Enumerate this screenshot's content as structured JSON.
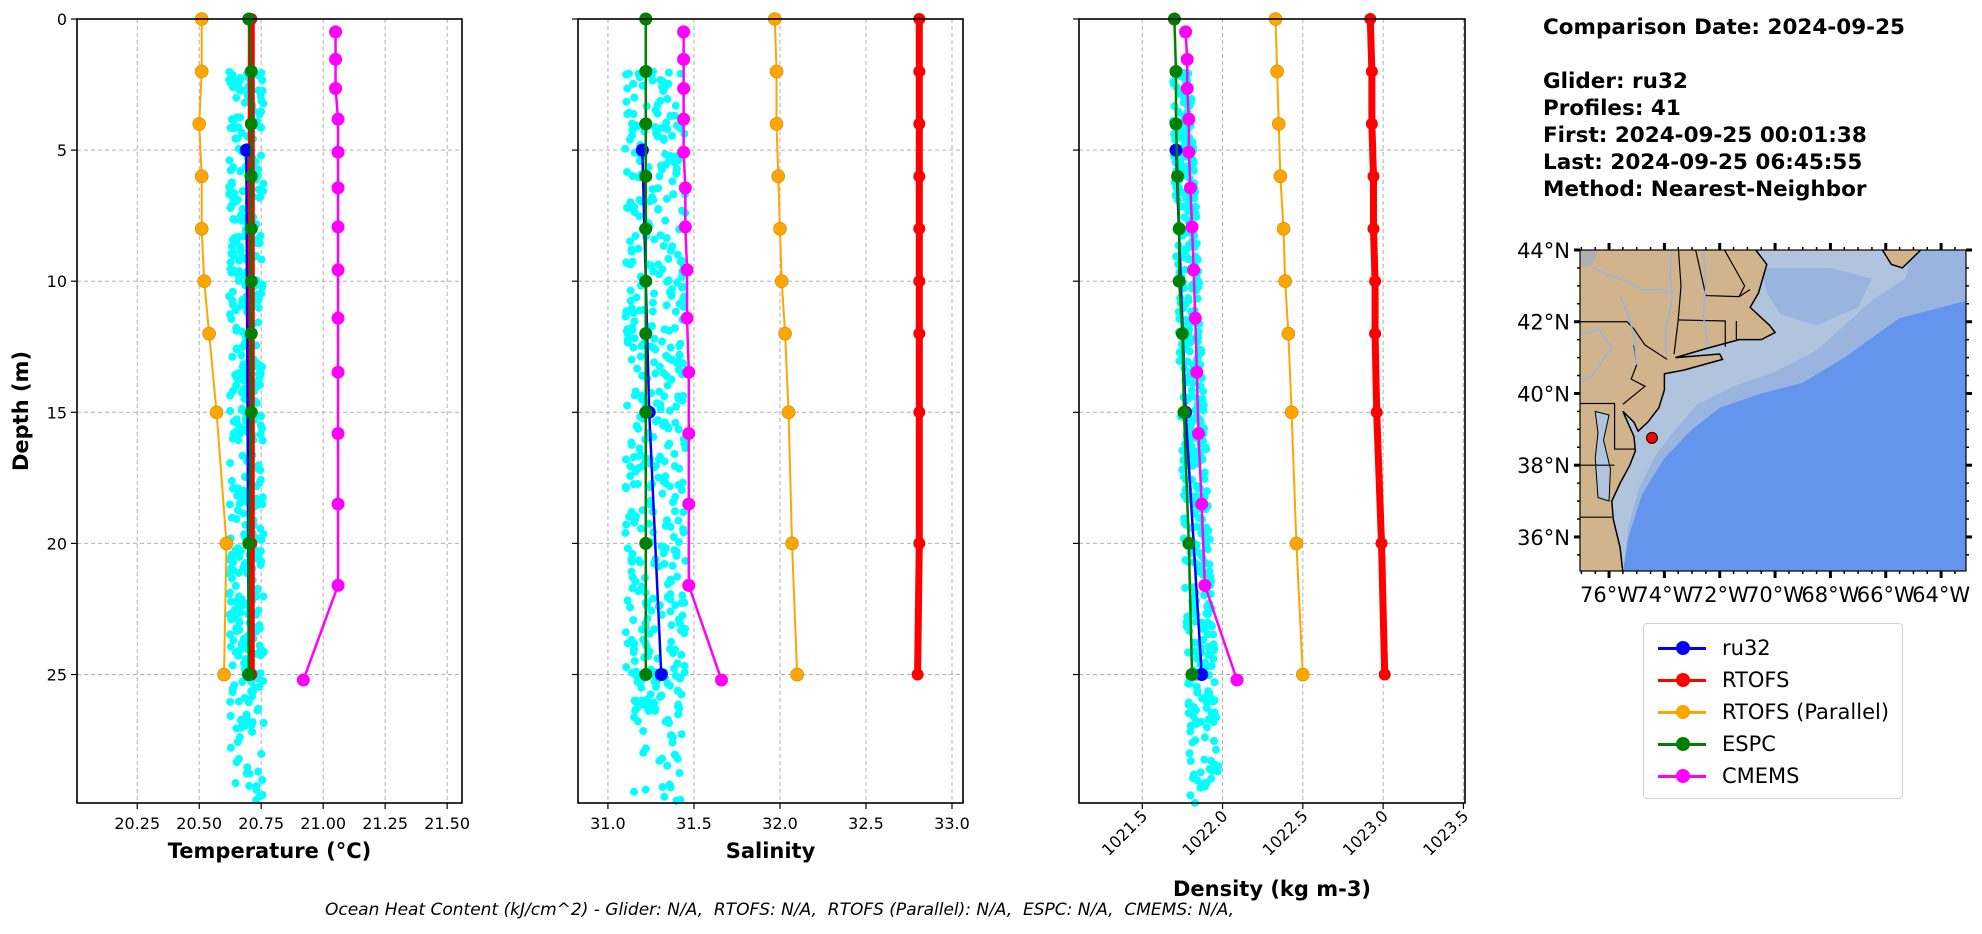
{
  "info": {
    "comparison_date": "Comparison Date: 2024-09-25",
    "glider": "Glider: ru32",
    "profiles": "Profiles: 41",
    "first": "First: 2024-09-25 00:01:38",
    "last": "Last: 2024-09-25 06:45:55",
    "method": "Method: Nearest-Neighbor"
  },
  "footer": "Ocean Heat Content (kJ/cm^2) - Glider: N/A,  RTOFS: N/A,  RTOFS (Parallel): N/A,  ESPC: N/A,  CMEMS: N/A,",
  "colors": {
    "ru32": "#0000ff",
    "RTOFS": "#ff0000",
    "RTOFS (Parallel)": "#ffa500",
    "ESPC": "#008000",
    "CMEMS": "#ff00ff",
    "glider_scatter": "#00ffff",
    "land": "#d2b48c",
    "shelf": "#b0c4de",
    "slope": "#9ab4e0",
    "deep": "#6495ed"
  },
  "legend": [
    {
      "label": "ru32",
      "key": "ru32"
    },
    {
      "label": "RTOFS",
      "key": "RTOFS"
    },
    {
      "label": "RTOFS (Parallel)",
      "key": "RTOFS (Parallel)"
    },
    {
      "label": "ESPC",
      "key": "ESPC"
    },
    {
      "label": "CMEMS",
      "key": "CMEMS"
    }
  ],
  "chart_data": [
    {
      "type": "line",
      "id": "temperature",
      "title": "",
      "xlabel": "Temperature (°C)",
      "ylabel": "Depth (m)",
      "xlim": [
        20.007,
        21.56
      ],
      "ylim": [
        29.9,
        0
      ],
      "xticks": [
        "20.25",
        "20.50",
        "20.75",
        "21.00",
        "21.25",
        "21.50"
      ],
      "xtick_values": [
        20.25,
        20.5,
        20.75,
        21.0,
        21.25,
        21.5
      ],
      "yticks": [
        "0",
        "5",
        "10",
        "15",
        "20",
        "25"
      ],
      "ytick_values": [
        0,
        5,
        10,
        15,
        20,
        25
      ],
      "grid": true,
      "glider_scatter": {
        "name": "ru32 profiles",
        "depth_range": [
          2,
          29.9
        ],
        "x_range": [
          20.62,
          20.76
        ]
      },
      "series": [
        {
          "name": "RTOFS (Parallel)",
          "depth": [
            0,
            2,
            4,
            6,
            8,
            10,
            12,
            15,
            20,
            25
          ],
          "values": [
            20.51,
            20.51,
            20.5,
            20.51,
            20.51,
            20.52,
            20.54,
            20.57,
            20.61,
            20.6
          ]
        },
        {
          "name": "RTOFS",
          "depth": [
            0,
            2,
            4,
            6,
            8,
            10,
            12,
            15,
            20,
            25
          ],
          "values": [
            20.71,
            20.71,
            20.71,
            20.71,
            20.71,
            20.71,
            20.71,
            20.71,
            20.71,
            20.71
          ]
        },
        {
          "name": "ru32",
          "depth": [
            5,
            25
          ],
          "values": [
            20.69,
            20.7
          ]
        },
        {
          "name": "ESPC",
          "depth": [
            0,
            2,
            4,
            6,
            8,
            10,
            12,
            15,
            20,
            25
          ],
          "values": [
            20.7,
            20.71,
            20.71,
            20.71,
            20.71,
            20.71,
            20.71,
            20.71,
            20.7,
            20.7
          ]
        },
        {
          "name": "CMEMS",
          "depth": [
            0.49,
            1.54,
            2.65,
            3.82,
            5.08,
            6.44,
            7.93,
            9.57,
            11.41,
            13.47,
            15.81,
            18.5,
            21.6,
            25.21
          ],
          "values": [
            21.05,
            21.05,
            21.05,
            21.06,
            21.06,
            21.06,
            21.06,
            21.06,
            21.06,
            21.06,
            21.06,
            21.06,
            21.06,
            20.92
          ]
        }
      ]
    },
    {
      "type": "line",
      "id": "salinity",
      "title": "",
      "xlabel": "Salinity",
      "ylabel": "",
      "xlim": [
        30.826,
        33.064
      ],
      "ylim": [
        29.9,
        0
      ],
      "xticks": [
        "31.0",
        "31.5",
        "32.0",
        "32.5",
        "33.0"
      ],
      "xtick_values": [
        31.0,
        31.5,
        32.0,
        32.5,
        33.0
      ],
      "yticks": [],
      "ytick_values": [
        0,
        5,
        10,
        15,
        20,
        25
      ],
      "grid": true,
      "glider_scatter": {
        "name": "ru32 profiles",
        "depth_range": [
          2,
          29.9
        ],
        "x_range": [
          31.1,
          31.45
        ]
      },
      "series": [
        {
          "name": "RTOFS (Parallel)",
          "depth": [
            0,
            2,
            4,
            6,
            8,
            10,
            12,
            15,
            20,
            25
          ],
          "values": [
            31.97,
            31.98,
            31.98,
            31.99,
            32.0,
            32.01,
            32.03,
            32.05,
            32.07,
            32.1
          ]
        },
        {
          "name": "RTOFS",
          "depth": [
            0,
            2,
            4,
            6,
            8,
            10,
            12,
            15,
            20,
            25
          ],
          "values": [
            32.81,
            32.81,
            32.81,
            32.81,
            32.81,
            32.81,
            32.81,
            32.81,
            32.81,
            32.8
          ]
        },
        {
          "name": "ru32",
          "depth": [
            5,
            15,
            25
          ],
          "values": [
            31.2,
            31.24,
            31.31
          ]
        },
        {
          "name": "ESPC",
          "depth": [
            0,
            2,
            4,
            6,
            8,
            10,
            12,
            15,
            20,
            25
          ],
          "values": [
            31.22,
            31.22,
            31.22,
            31.22,
            31.22,
            31.22,
            31.22,
            31.22,
            31.22,
            31.22
          ]
        },
        {
          "name": "CMEMS",
          "depth": [
            0.49,
            1.54,
            2.65,
            3.82,
            5.08,
            6.44,
            7.93,
            9.57,
            11.41,
            13.47,
            15.81,
            18.5,
            21.6,
            25.21
          ],
          "values": [
            31.44,
            31.44,
            31.44,
            31.44,
            31.44,
            31.45,
            31.45,
            31.46,
            31.46,
            31.47,
            31.47,
            31.47,
            31.47,
            31.66
          ]
        }
      ]
    },
    {
      "type": "line",
      "id": "density",
      "title": "",
      "xlabel": "Density (kg m-3)",
      "ylabel": "",
      "xlim": [
        1021.106,
        1023.51
      ],
      "ylim": [
        29.9,
        0
      ],
      "xticks": [
        "1021.5",
        "1022.0",
        "1022.5",
        "1023.0",
        "1023.5"
      ],
      "xtick_values": [
        1021.5,
        1022.0,
        1022.5,
        1023.0,
        1023.5
      ],
      "xtick_rotation": 45,
      "yticks": [],
      "ytick_values": [
        0,
        5,
        10,
        15,
        20,
        25
      ],
      "grid": true,
      "glider_scatter": {
        "name": "ru32 profiles",
        "depth_range": [
          2,
          29.9
        ],
        "x_range": [
          1021.68,
          1021.99
        ]
      },
      "series": [
        {
          "name": "RTOFS (Parallel)",
          "depth": [
            0,
            2,
            4,
            6,
            8,
            10,
            12,
            15,
            20,
            25
          ],
          "values": [
            1022.33,
            1022.34,
            1022.35,
            1022.36,
            1022.38,
            1022.39,
            1022.41,
            1022.43,
            1022.46,
            1022.5
          ]
        },
        {
          "name": "RTOFS",
          "depth": [
            0,
            2,
            4,
            6,
            8,
            10,
            12,
            15,
            20,
            25
          ],
          "values": [
            1022.92,
            1022.93,
            1022.93,
            1022.94,
            1022.94,
            1022.95,
            1022.95,
            1022.96,
            1022.99,
            1023.01
          ]
        },
        {
          "name": "ru32",
          "depth": [
            5,
            15,
            25
          ],
          "values": [
            1021.71,
            1021.77,
            1021.87
          ]
        },
        {
          "name": "ESPC",
          "depth": [
            0,
            2,
            4,
            6,
            8,
            10,
            12,
            15,
            20,
            25
          ],
          "values": [
            1021.7,
            1021.71,
            1021.71,
            1021.72,
            1021.73,
            1021.73,
            1021.75,
            1021.76,
            1021.79,
            1021.81
          ]
        },
        {
          "name": "CMEMS",
          "depth": [
            0.49,
            1.54,
            2.65,
            3.82,
            5.08,
            6.44,
            7.93,
            9.57,
            11.41,
            13.47,
            15.81,
            18.5,
            21.6,
            25.21
          ],
          "values": [
            1021.77,
            1021.78,
            1021.78,
            1021.79,
            1021.79,
            1021.8,
            1021.81,
            1021.82,
            1021.83,
            1021.84,
            1021.85,
            1021.87,
            1021.89,
            1022.09
          ]
        }
      ]
    },
    {
      "type": "map",
      "id": "location-map",
      "lon_range": [
        -77.05,
        -63.1
      ],
      "lat_range": [
        35.05,
        44.0
      ],
      "lat_ticks": [
        "36°N",
        "38°N",
        "40°N",
        "42°N",
        "44°N"
      ],
      "lat_tick_values": [
        36,
        38,
        40,
        42,
        44
      ],
      "lon_ticks": [
        "76°W",
        "74°W",
        "72°W",
        "70°W",
        "68°W",
        "66°W",
        "64°W"
      ],
      "lon_tick_values": [
        -76,
        -74,
        -72,
        -70,
        -68,
        -66,
        -64
      ],
      "glider_location": {
        "lon": -74.45,
        "lat": 38.76
      }
    }
  ]
}
